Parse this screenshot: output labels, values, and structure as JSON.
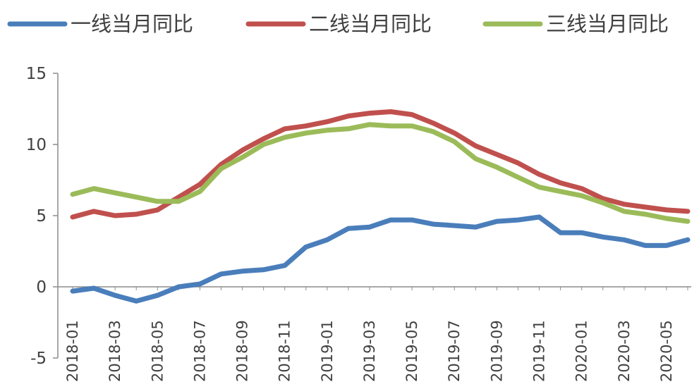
{
  "chart_data": {
    "type": "line",
    "title": "",
    "xlabel": "",
    "ylabel": "",
    "x": [
      "2018-01",
      "2018-02",
      "2018-03",
      "2018-04",
      "2018-05",
      "2018-06",
      "2018-07",
      "2018-08",
      "2018-09",
      "2018-10",
      "2018-11",
      "2018-12",
      "2019-01",
      "2019-02",
      "2019-03",
      "2019-04",
      "2019-05",
      "2019-06",
      "2019-07",
      "2019-08",
      "2019-09",
      "2019-10",
      "2019-11",
      "2019-12",
      "2020-01",
      "2020-02",
      "2020-03",
      "2020-04",
      "2020-05",
      "2020-06"
    ],
    "x_tick_labels": [
      "2018-01",
      "2018-03",
      "2018-05",
      "2018-07",
      "2018-09",
      "2018-11",
      "2019-01",
      "2019-03",
      "2019-05",
      "2019-07",
      "2019-09",
      "2019-11",
      "2020-01",
      "2020-03",
      "2020-05"
    ],
    "ylim": [
      -5,
      15
    ],
    "y_ticks": [
      -5,
      0,
      5,
      10,
      15
    ],
    "grid": false,
    "legend_position": "top",
    "series": [
      {
        "name": "一线当月同比",
        "color": "#4a7ebb",
        "values": [
          -0.3,
          -0.1,
          -0.6,
          -1.0,
          -0.6,
          0.0,
          0.2,
          0.9,
          1.1,
          1.2,
          1.5,
          2.8,
          3.3,
          4.1,
          4.2,
          4.7,
          4.7,
          4.4,
          4.3,
          4.2,
          4.6,
          4.7,
          4.9,
          3.8,
          3.8,
          3.5,
          3.3,
          2.9,
          2.9,
          3.3
        ]
      },
      {
        "name": "二线当月同比",
        "color": "#c0504d",
        "values": [
          4.9,
          5.3,
          5.0,
          5.1,
          5.4,
          6.3,
          7.2,
          8.6,
          9.6,
          10.4,
          11.1,
          11.3,
          11.6,
          12.0,
          12.2,
          12.3,
          12.1,
          11.5,
          10.8,
          9.9,
          9.3,
          8.7,
          7.9,
          7.3,
          6.9,
          6.2,
          5.8,
          5.6,
          5.4,
          5.3
        ]
      },
      {
        "name": "三线当月同比",
        "color": "#9bbb59",
        "values": [
          6.5,
          6.9,
          6.6,
          6.3,
          6.0,
          6.0,
          6.7,
          8.3,
          9.1,
          10.0,
          10.5,
          10.8,
          11.0,
          11.1,
          11.4,
          11.3,
          11.3,
          10.9,
          10.2,
          9.0,
          8.4,
          7.7,
          7.0,
          6.7,
          6.4,
          5.9,
          5.3,
          5.1,
          4.8,
          4.6
        ]
      }
    ]
  }
}
